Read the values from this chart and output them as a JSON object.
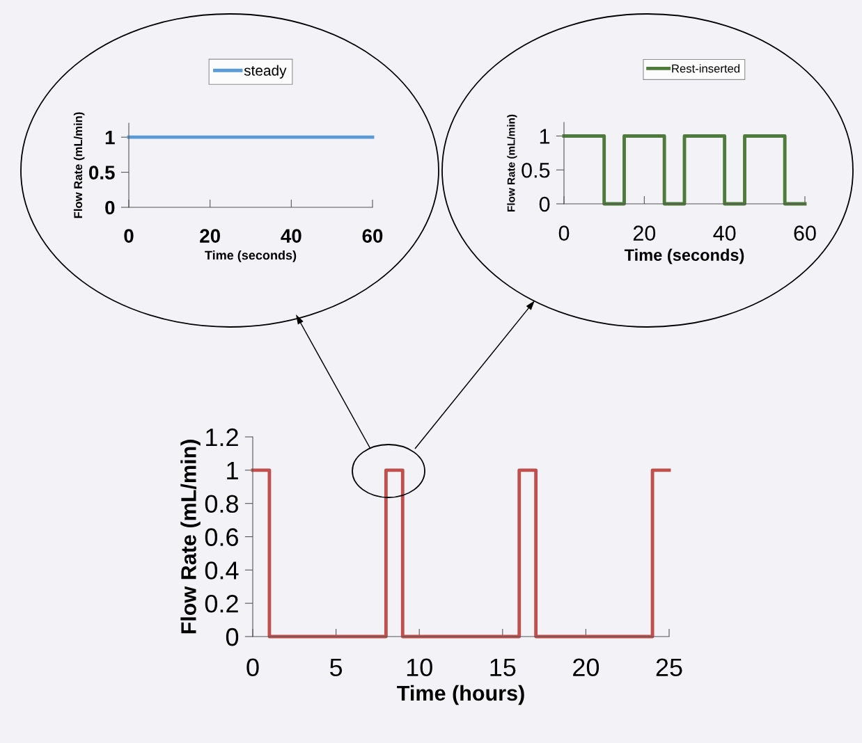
{
  "chart_data": [
    {
      "type": "line",
      "x": [
        0,
        60
      ],
      "series": [
        {
          "name": "steady",
          "color": "#5b9bd5",
          "values": [
            1,
            1
          ]
        }
      ],
      "xlim": [
        0,
        60
      ],
      "ylim": [
        0,
        1.2
      ],
      "xticks": [
        0,
        20,
        40,
        60
      ],
      "yticks": [
        0,
        0.5,
        1
      ],
      "xlabel": "Time (seconds)",
      "ylabel": "Flow Rate (mL/min)",
      "legend": "top"
    },
    {
      "type": "step",
      "x": [
        0,
        10,
        15,
        25,
        30,
        40,
        45,
        55,
        60
      ],
      "series": [
        {
          "name": "Rest-inserted",
          "color": "#4e7a3c",
          "values": [
            1,
            0,
            1,
            0,
            1,
            0,
            1,
            0,
            0
          ]
        }
      ],
      "xlim": [
        0,
        60
      ],
      "ylim": [
        0,
        1.2
      ],
      "xticks": [
        0,
        20,
        40,
        60
      ],
      "yticks": [
        0,
        0.5,
        1
      ],
      "xlabel": "Time (seconds)",
      "ylabel": "Flow Rate (mL/min)",
      "legend": "top"
    },
    {
      "type": "step",
      "x": [
        0,
        1,
        8,
        9,
        16,
        17,
        24,
        25
      ],
      "series": [
        {
          "color": "#c0504d",
          "values": [
            1,
            0,
            1,
            0,
            1,
            0,
            1,
            1
          ]
        }
      ],
      "xlim": [
        0,
        25
      ],
      "ylim": [
        0,
        1.2
      ],
      "xticks": [
        0,
        5,
        10,
        15,
        20,
        25
      ],
      "yticks": [
        0,
        0.2,
        0.4,
        0.6,
        0.8,
        1,
        1.2
      ],
      "xlabel": "Time (hours)",
      "ylabel": "Flow Rate (mL/min)"
    }
  ]
}
